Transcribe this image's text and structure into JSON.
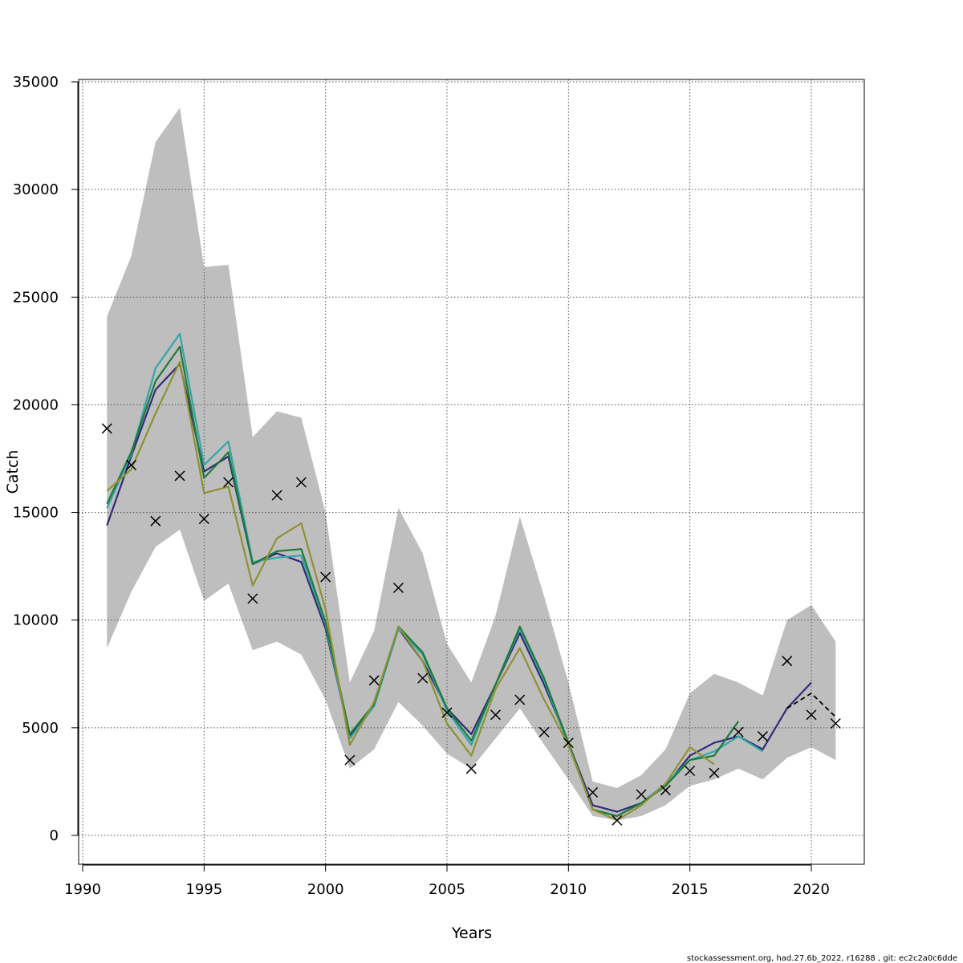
{
  "chart_data": {
    "type": "line",
    "xlabel": "Years",
    "ylabel": "Catch",
    "xlim": [
      1990,
      2022
    ],
    "ylim": [
      0,
      35000
    ],
    "x_ticks": [
      1990,
      1995,
      2000,
      2005,
      2010,
      2015,
      2020
    ],
    "y_ticks": [
      0,
      5000,
      10000,
      15000,
      20000,
      25000,
      30000,
      35000
    ],
    "grid": true,
    "band": {
      "x": [
        1991,
        1992,
        1993,
        1994,
        1995,
        1996,
        1997,
        1998,
        1999,
        2000,
        2001,
        2002,
        2003,
        2004,
        2005,
        2006,
        2007,
        2008,
        2009,
        2010,
        2011,
        2012,
        2013,
        2014,
        2015,
        2016,
        2017,
        2018,
        2019,
        2020,
        2021
      ],
      "upper": [
        24100,
        26900,
        32200,
        33800,
        26400,
        26500,
        18500,
        19700,
        19400,
        15000,
        7100,
        9500,
        15200,
        13100,
        8900,
        7100,
        10200,
        14800,
        11100,
        7100,
        2500,
        2200,
        2800,
        4000,
        6600,
        7500,
        7100,
        6500,
        10000,
        10700,
        9000
      ],
      "lower": [
        8700,
        11300,
        13400,
        14200,
        10900,
        11700,
        8600,
        9000,
        8400,
        6300,
        3100,
        4000,
        6200,
        5100,
        3800,
        3100,
        4500,
        5900,
        4200,
        2600,
        900,
        700,
        900,
        1400,
        2300,
        2600,
        3100,
        2600,
        3600,
        4100,
        3500
      ],
      "color": "#bebebe"
    },
    "series": [
      {
        "color": "#312a7a",
        "x": [
          1991,
          1992,
          1993,
          1994,
          1995,
          1996,
          1997,
          1998,
          1999,
          2000,
          2001,
          2002,
          2003,
          2004,
          2005,
          2006,
          2007,
          2008,
          2009,
          2010,
          2011,
          2012,
          2013,
          2014,
          2015,
          2016,
          2017,
          2018,
          2019,
          2020
        ],
        "values": [
          14400,
          17600,
          20700,
          21900,
          16900,
          17600,
          12600,
          13100,
          12700,
          9600,
          4600,
          6100,
          9600,
          8100,
          5900,
          4700,
          7000,
          9400,
          7000,
          4300,
          1400,
          1100,
          1500,
          2300,
          3700,
          4300,
          4600,
          4000,
          5900,
          7100
        ]
      },
      {
        "color": "#33a6a6",
        "x": [
          1991,
          1992,
          1993,
          1994,
          1995,
          1996,
          1997,
          1998,
          1999,
          2000,
          2001,
          2002,
          2003,
          2004,
          2005,
          2006,
          2007,
          2008,
          2009,
          2010,
          2011,
          2012,
          2013,
          2014,
          2015,
          2016,
          2017,
          2018
        ],
        "values": [
          15200,
          17700,
          21700,
          23300,
          17200,
          18300,
          12700,
          12900,
          13000,
          9800,
          4500,
          6000,
          9600,
          8400,
          5800,
          4200,
          7000,
          9600,
          7200,
          4200,
          1200,
          900,
          1500,
          2400,
          3500,
          3900,
          4600,
          3900
        ]
      },
      {
        "color": "#1f7a3a",
        "x": [
          1991,
          1992,
          1993,
          1994,
          1995,
          1996,
          1997,
          1998,
          1999,
          2000,
          2001,
          2002,
          2003,
          2004,
          2005,
          2006,
          2007,
          2008,
          2009,
          2010,
          2011,
          2012,
          2013,
          2014,
          2015,
          2016,
          2017
        ],
        "values": [
          15400,
          17800,
          21100,
          22700,
          16600,
          17800,
          12600,
          13200,
          13300,
          9900,
          4700,
          6100,
          9700,
          8500,
          5900,
          4400,
          7000,
          9700,
          7300,
          4300,
          1200,
          900,
          1500,
          2300,
          3500,
          3700,
          5300
        ]
      },
      {
        "color": "#8f9133",
        "x": [
          1991,
          1992,
          1993,
          1994,
          1995,
          1996,
          1997,
          1998,
          1999,
          2000,
          2001,
          2002,
          2003,
          2004,
          2005,
          2006,
          2007,
          2008,
          2009,
          2010,
          2011,
          2012,
          2013,
          2014,
          2015,
          2016
        ],
        "values": [
          16000,
          17000,
          19600,
          22000,
          15900,
          16200,
          11600,
          13800,
          14500,
          10500,
          4200,
          6200,
          9700,
          8100,
          5200,
          3700,
          6800,
          8700,
          6300,
          4200,
          1200,
          700,
          1400,
          2400,
          4100,
          3300
        ]
      },
      {
        "color": "#000000",
        "dashed": true,
        "x": [
          2019,
          2020,
          2021
        ],
        "values": [
          5900,
          6600,
          5500
        ]
      }
    ],
    "observations": {
      "x": [
        1991,
        1992,
        1993,
        1994,
        1995,
        1996,
        1997,
        1998,
        1999,
        2000,
        2001,
        2002,
        2003,
        2004,
        2005,
        2006,
        2007,
        2008,
        2009,
        2010,
        2011,
        2012,
        2013,
        2014,
        2015,
        2016,
        2017,
        2018,
        2019,
        2020,
        2021
      ],
      "values": [
        18900,
        17200,
        14600,
        16700,
        14700,
        16400,
        11000,
        15800,
        16400,
        12000,
        3500,
        7200,
        11500,
        7300,
        5700,
        3100,
        5600,
        6300,
        4800,
        4300,
        2000,
        700,
        1900,
        2100,
        3000,
        2900,
        4800,
        4600,
        8100,
        5600,
        5200
      ]
    }
  },
  "footer": "stockassessment.org, had.27.6b_2022, r16288 , git: ec2c2a0c6dde"
}
